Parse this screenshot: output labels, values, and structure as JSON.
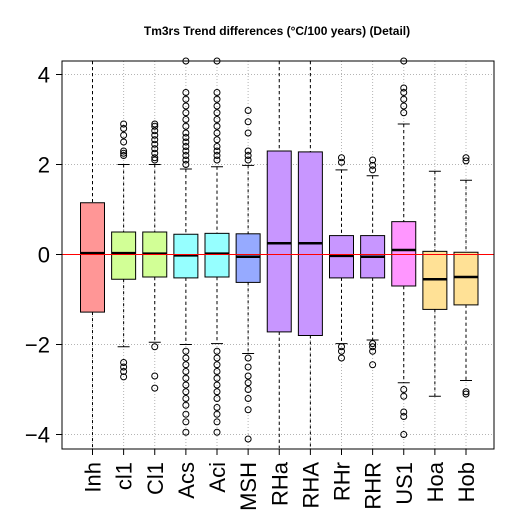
{
  "chart_data": {
    "type": "box",
    "title": "Tm3rs Trend differences (°C/100 years) (Detail)",
    "xlabel": "",
    "ylabel": "",
    "ylim": [
      -4.3,
      4.3
    ],
    "y_ticks": [
      -4,
      -2,
      0,
      2,
      4
    ],
    "grid": true,
    "reference_line": {
      "y": 0,
      "color": "#ff0000"
    },
    "categories": [
      "Inh",
      "cl1",
      "Cl1",
      "Acs",
      "Aci",
      "MSH",
      "RHa",
      "RHA",
      "RHr",
      "RHR",
      "US1",
      "Hoa",
      "Hob"
    ],
    "boxes": [
      {
        "name": "Inh",
        "color": "#ff9696",
        "whisker_low": -4.3,
        "q1": -1.28,
        "median": 0.03,
        "q3": 1.15,
        "whisker_high": 4.3,
        "outliers": []
      },
      {
        "name": "cl1",
        "color": "#d2ff96",
        "whisker_low": -2.05,
        "q1": -0.55,
        "median": 0.03,
        "q3": 0.5,
        "whisker_high": 2.0,
        "outliers": [
          2.9,
          2.8,
          2.65,
          2.5,
          2.3,
          2.25,
          2.2,
          -2.4,
          -2.5,
          -2.6,
          -2.72
        ]
      },
      {
        "name": "Cl1",
        "color": "#d2ff96",
        "whisker_low": -1.95,
        "q1": -0.5,
        "median": 0.02,
        "q3": 0.5,
        "whisker_high": 2.0,
        "outliers": [
          2.9,
          2.85,
          2.75,
          2.65,
          2.55,
          2.45,
          2.35,
          2.25,
          2.15,
          2.1,
          -2.05,
          -2.7,
          -2.97
        ]
      },
      {
        "name": "Acs",
        "color": "#96ffff",
        "whisker_low": -2.0,
        "q1": -0.52,
        "median": -0.02,
        "q3": 0.45,
        "whisker_high": 1.9,
        "outliers": [
          4.3,
          3.6,
          3.45,
          3.3,
          3.15,
          3.0,
          2.85,
          2.7,
          2.6,
          2.5,
          2.4,
          2.3,
          2.2,
          2.1,
          2.0,
          -2.15,
          -2.3,
          -2.45,
          -2.6,
          -2.75,
          -2.9,
          -3.05,
          -3.2,
          -3.35,
          -3.55,
          -3.72,
          -3.95
        ]
      },
      {
        "name": "Aci",
        "color": "#96ffff",
        "whisker_low": -1.98,
        "q1": -0.5,
        "median": 0.02,
        "q3": 0.47,
        "whisker_high": 1.95,
        "outliers": [
          4.3,
          3.6,
          3.45,
          3.3,
          3.15,
          3.0,
          2.85,
          2.7,
          2.55,
          2.4,
          2.3,
          2.2,
          2.1,
          -2.15,
          -2.3,
          -2.45,
          -2.6,
          -2.75,
          -2.9,
          -3.05,
          -3.2,
          -3.4,
          -3.55,
          -3.72,
          -3.95
        ]
      },
      {
        "name": "MSH",
        "color": "#96aaff",
        "whisker_low": -2.2,
        "q1": -0.62,
        "median": -0.05,
        "q3": 0.46,
        "whisker_high": 1.98,
        "outliers": [
          3.2,
          2.95,
          2.7,
          2.3,
          2.2,
          2.1,
          -2.3,
          -2.5,
          -2.7,
          -2.85,
          -3.0,
          -3.2,
          -3.45,
          -4.1
        ]
      },
      {
        "name": "RHa",
        "color": "#c896ff",
        "whisker_low": -4.3,
        "q1": -1.72,
        "median": 0.25,
        "q3": 2.3,
        "whisker_high": 4.3,
        "outliers": []
      },
      {
        "name": "RHA",
        "color": "#c896ff",
        "whisker_low": -4.3,
        "q1": -1.8,
        "median": 0.25,
        "q3": 2.28,
        "whisker_high": 4.3,
        "outliers": []
      },
      {
        "name": "RHr",
        "color": "#c896ff",
        "whisker_low": -1.98,
        "q1": -0.52,
        "median": -0.03,
        "q3": 0.42,
        "whisker_high": 1.88,
        "outliers": [
          2.15,
          2.05,
          -2.05,
          -2.15,
          -2.3
        ]
      },
      {
        "name": "RHR",
        "color": "#c896ff",
        "whisker_low": -1.9,
        "q1": -0.52,
        "median": -0.05,
        "q3": 0.42,
        "whisker_high": 1.75,
        "outliers": [
          2.1,
          1.98,
          1.88,
          -1.98,
          -2.05,
          -2.15,
          -2.45
        ]
      },
      {
        "name": "US1",
        "color": "#ff96ff",
        "whisker_low": -2.85,
        "q1": -0.7,
        "median": 0.1,
        "q3": 0.73,
        "whisker_high": 2.9,
        "outliers": [
          4.3,
          3.7,
          3.6,
          3.45,
          3.3,
          3.15,
          -3.0,
          -3.15,
          -3.5,
          -3.6,
          -4.0
        ]
      },
      {
        "name": "Hoa",
        "color": "#ffe196",
        "whisker_low": -3.15,
        "q1": -1.22,
        "median": -0.55,
        "q3": 0.07,
        "whisker_high": 1.85,
        "outliers": []
      },
      {
        "name": "Hob",
        "color": "#ffe196",
        "whisker_low": -2.8,
        "q1": -1.12,
        "median": -0.5,
        "q3": 0.05,
        "whisker_high": 1.65,
        "outliers": [
          2.15,
          2.08,
          -3.05,
          -3.1
        ]
      }
    ]
  }
}
